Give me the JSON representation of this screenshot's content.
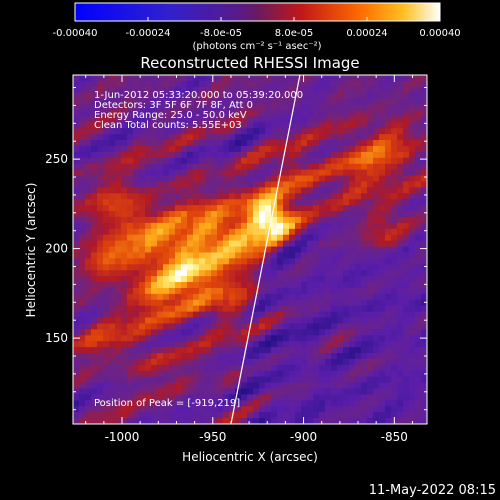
{
  "colorbar": {
    "ticks": [
      -0.0004,
      -0.00024,
      -8e-05,
      8e-05,
      0.00024,
      0.0004
    ],
    "tick_labels": [
      "-0.00040",
      "-0.00024",
      "-8.0e-05",
      "8.0e-05",
      "0.00024",
      "0.00040"
    ],
    "range": [
      -0.0004,
      0.0004
    ],
    "units_label": "(photons cm⁻² s⁻¹ asec⁻²)"
  },
  "chart_data": {
    "type": "heatmap",
    "title": "Reconstructed RHESSI Image",
    "xlabel": "Heliocentric X (arcsec)",
    "ylabel": "Heliocentric Y (arcsec)",
    "xlim": [
      -1027,
      -832
    ],
    "ylim": [
      102,
      297
    ],
    "xticks": [
      -1000,
      -950,
      -900,
      -850
    ],
    "xtick_labels": [
      "-1000",
      "-950",
      "-900",
      "-850"
    ],
    "yticks": [
      150,
      200,
      250
    ],
    "ytick_labels": [
      "150",
      "200",
      "250"
    ],
    "peak": {
      "x": -919,
      "y": 219
    },
    "limb_line": [
      {
        "x": -940,
        "y": 102
      },
      {
        "x": -902,
        "y": 297
      }
    ],
    "annotations": [
      "1-Jun-2012 05:33:20.000 to 05:39:20.000",
      "Detectors: 3F 5F 6F 7F 8F, Att 0",
      "Energy Range: 25.0 - 50.0 keV",
      "Clean    Total counts: 5.55E+03"
    ],
    "peak_label": "Position of Peak = [-919,219]",
    "colors": [
      "#0000ff",
      "#6a1fb0",
      "#c01818",
      "#ff7a00",
      "#ffe020",
      "#ffffff"
    ]
  },
  "footer": {
    "timestamp": "11-May-2022 08:15"
  }
}
